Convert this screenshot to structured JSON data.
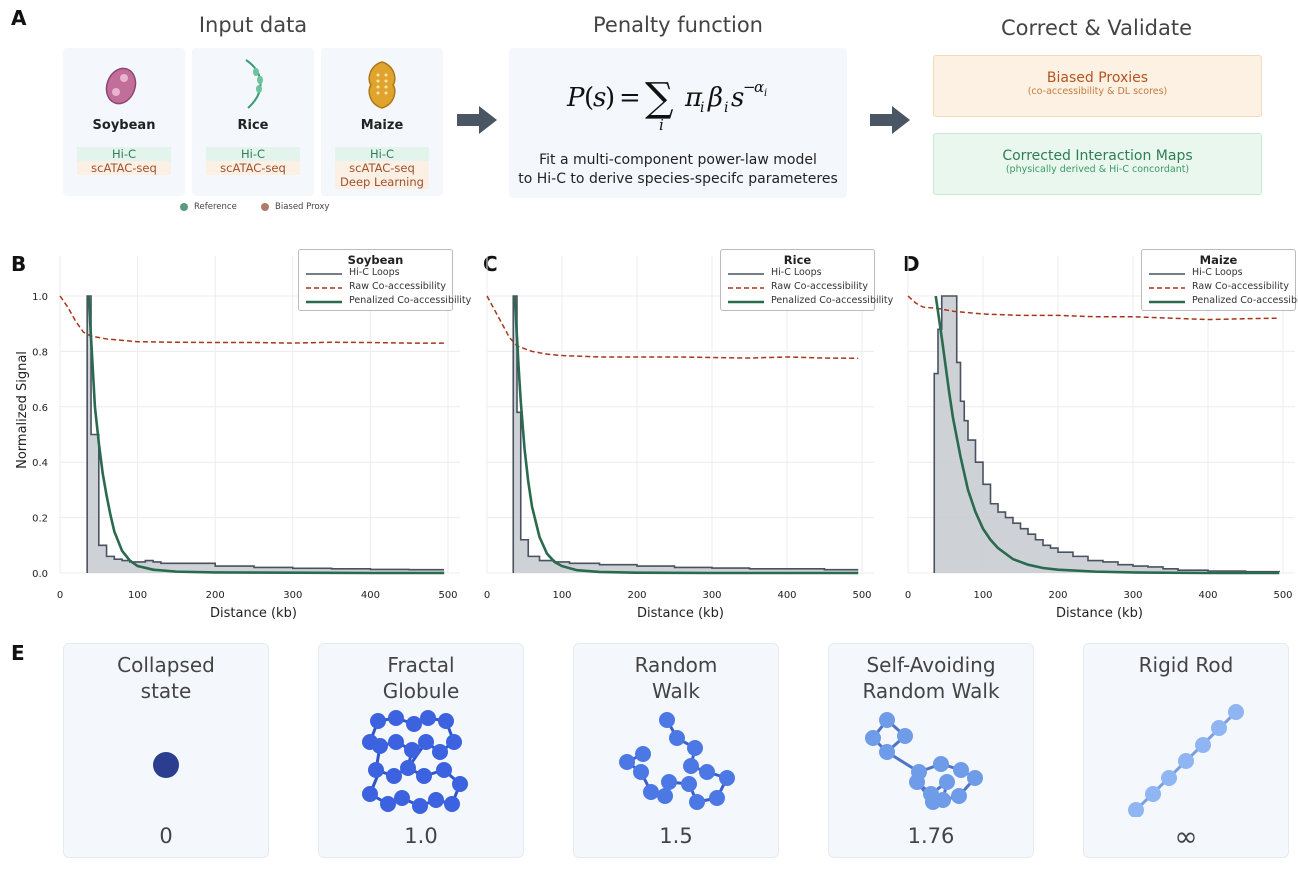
{
  "panels": {
    "A": "A",
    "B": "B",
    "C": "C",
    "D": "D",
    "E": "E"
  },
  "section_a": {
    "input_title": "Input data",
    "penalty_title": "Penalty function",
    "correct_title": "Correct & Validate",
    "species": [
      {
        "name": "Soybean",
        "tags": [
          "Hi-C",
          "scATAC-seq"
        ],
        "icon": "soybean-icon"
      },
      {
        "name": "Rice",
        "tags": [
          "Hi-C",
          "scATAC-seq"
        ],
        "icon": "rice-icon"
      },
      {
        "name": "Maize",
        "tags": [
          "Hi-C",
          "scATAC-seq",
          "Deep Learning"
        ],
        "icon": "maize-icon"
      }
    ],
    "legend": {
      "reference": "Reference",
      "biased": "Biased Proxy"
    },
    "formula_caption_1": "Fit a multi-component power-law model",
    "formula_caption_2": "to Hi-C to derive species-specifc parameteres",
    "biased_box": {
      "title": "Biased Proxies",
      "subtitle": "(co-accessibility & DL scores)"
    },
    "corrected_box": {
      "title": "Corrected Interaction Maps",
      "subtitle": "(physically derived & Hi-C concordant)"
    },
    "colors": {
      "card_bg": "#f4f7fc",
      "ref_green": "#2e7d54",
      "bias_brown": "#a0522d",
      "arrow": "#4a5664"
    }
  },
  "chart_data": [
    {
      "type": "line",
      "title": "Soybean",
      "xlabel": "Distance (kb)",
      "ylabel": "Normalized Signal",
      "xlim": [
        0,
        500
      ],
      "ylim": [
        0,
        1.0
      ],
      "xticks": [
        0,
        100,
        200,
        300,
        400,
        500
      ],
      "yticks": [
        0.0,
        0.2,
        0.4,
        0.6,
        0.8,
        1.0
      ],
      "legend": [
        "Hi-C Loops",
        "Raw Co-accessibility",
        "Penalized Co-accessibility"
      ],
      "legend_position": "top-right",
      "series": [
        {
          "name": "Hi-C Loops",
          "style": "step",
          "x": [
            35,
            40,
            50,
            60,
            70,
            80,
            90,
            100,
            110,
            120,
            130,
            150,
            200,
            250,
            300,
            350,
            400,
            450,
            495
          ],
          "y": [
            1.0,
            0.5,
            0.1,
            0.06,
            0.05,
            0.045,
            0.04,
            0.04,
            0.045,
            0.04,
            0.035,
            0.035,
            0.025,
            0.02,
            0.017,
            0.015,
            0.013,
            0.012,
            0.012
          ]
        },
        {
          "name": "Raw Co-accessibility",
          "style": "dashed",
          "x": [
            0,
            10,
            20,
            30,
            40,
            60,
            80,
            100,
            150,
            200,
            250,
            300,
            350,
            400,
            450,
            495
          ],
          "y": [
            1.0,
            0.96,
            0.91,
            0.87,
            0.855,
            0.845,
            0.84,
            0.835,
            0.833,
            0.832,
            0.832,
            0.83,
            0.833,
            0.832,
            0.83,
            0.83
          ]
        },
        {
          "name": "Penalized Co-accessibility",
          "style": "solid",
          "x": [
            37,
            45,
            50,
            55,
            60,
            65,
            70,
            80,
            90,
            100,
            120,
            150,
            200,
            300,
            400,
            495
          ],
          "y": [
            1.0,
            0.6,
            0.47,
            0.36,
            0.28,
            0.21,
            0.15,
            0.08,
            0.045,
            0.025,
            0.012,
            0.005,
            0.002,
            0.001,
            0.0,
            0.0
          ]
        }
      ]
    },
    {
      "type": "line",
      "title": "Rice",
      "xlabel": "Distance (kb)",
      "ylabel": "",
      "xlim": [
        0,
        500
      ],
      "ylim": [
        0,
        1.0
      ],
      "xticks": [
        0,
        100,
        200,
        300,
        400,
        500
      ],
      "legend": [
        "Hi-C Loops",
        "Raw Co-accessibility",
        "Penalized Co-accessibility"
      ],
      "legend_position": "top-right",
      "series": [
        {
          "name": "Hi-C Loops",
          "style": "step",
          "x": [
            35,
            40,
            45,
            55,
            70,
            90,
            110,
            130,
            150,
            200,
            250,
            300,
            350,
            400,
            450,
            495
          ],
          "y": [
            1.0,
            0.58,
            0.12,
            0.06,
            0.045,
            0.04,
            0.035,
            0.035,
            0.03,
            0.025,
            0.02,
            0.018,
            0.015,
            0.015,
            0.012,
            0.012
          ]
        },
        {
          "name": "Raw Co-accessibility",
          "style": "dashed",
          "x": [
            0,
            10,
            20,
            30,
            40,
            60,
            80,
            100,
            150,
            200,
            250,
            300,
            350,
            400,
            450,
            495
          ],
          "y": [
            1.0,
            0.95,
            0.9,
            0.85,
            0.82,
            0.8,
            0.79,
            0.785,
            0.78,
            0.78,
            0.78,
            0.778,
            0.776,
            0.78,
            0.776,
            0.775
          ]
        },
        {
          "name": "Penalized Co-accessibility",
          "style": "solid",
          "x": [
            37,
            42,
            45,
            50,
            55,
            60,
            70,
            80,
            90,
            100,
            120,
            150,
            200,
            300,
            400,
            495
          ],
          "y": [
            1.0,
            0.75,
            0.62,
            0.45,
            0.33,
            0.24,
            0.13,
            0.07,
            0.04,
            0.025,
            0.01,
            0.004,
            0.001,
            0.0,
            0.0,
            0.0
          ]
        }
      ]
    },
    {
      "type": "line",
      "title": "Maize",
      "xlabel": "Distance (kb)",
      "ylabel": "",
      "xlim": [
        0,
        500
      ],
      "ylim": [
        0,
        1.0
      ],
      "xticks": [
        0,
        100,
        200,
        300,
        400,
        500
      ],
      "legend": [
        "Hi-C Loops",
        "Raw Co-accessibility",
        "Penalized Co-accessibility"
      ],
      "legend_position": "top-right",
      "series": [
        {
          "name": "Hi-C Loops",
          "style": "step",
          "x": [
            35,
            40,
            45,
            55,
            65,
            70,
            75,
            80,
            90,
            100,
            110,
            120,
            130,
            140,
            150,
            160,
            170,
            180,
            190,
            200,
            220,
            240,
            260,
            280,
            300,
            320,
            340,
            360,
            400,
            450,
            495
          ],
          "y": [
            0.72,
            0.88,
            1.0,
            1.0,
            0.76,
            0.62,
            0.55,
            0.48,
            0.4,
            0.32,
            0.25,
            0.22,
            0.2,
            0.18,
            0.16,
            0.14,
            0.12,
            0.1,
            0.09,
            0.075,
            0.06,
            0.045,
            0.04,
            0.03,
            0.025,
            0.022,
            0.015,
            0.01,
            0.007,
            0.005,
            0.004
          ]
        },
        {
          "name": "Raw Co-accessibility",
          "style": "dashed",
          "x": [
            0,
            10,
            20,
            40,
            60,
            80,
            100,
            150,
            200,
            250,
            300,
            350,
            400,
            450,
            495
          ],
          "y": [
            1.0,
            0.975,
            0.96,
            0.955,
            0.945,
            0.94,
            0.935,
            0.93,
            0.93,
            0.925,
            0.925,
            0.92,
            0.915,
            0.918,
            0.92
          ]
        },
        {
          "name": "Penalized Co-accessibility",
          "style": "solid",
          "x": [
            37,
            45,
            50,
            55,
            60,
            70,
            80,
            90,
            100,
            110,
            120,
            140,
            160,
            180,
            200,
            250,
            300,
            400,
            495
          ],
          "y": [
            1.0,
            0.85,
            0.75,
            0.65,
            0.56,
            0.42,
            0.3,
            0.22,
            0.16,
            0.12,
            0.09,
            0.05,
            0.03,
            0.018,
            0.012,
            0.005,
            0.002,
            0.0,
            0.0
          ]
        }
      ]
    }
  ],
  "section_e": {
    "models": [
      {
        "title": "Collapsed\nstate",
        "value": "0",
        "icon": "collapsed-state-icon"
      },
      {
        "title": "Fractal\nGlobule",
        "value": "1.0",
        "icon": "fractal-globule-icon"
      },
      {
        "title": "Random\nWalk",
        "value": "1.5",
        "icon": "random-walk-icon"
      },
      {
        "title": "Self-Avoiding\nRandom Walk",
        "value": "1.76",
        "icon": "self-avoiding-walk-icon"
      },
      {
        "title": "Rigid Rod",
        "value": "∞",
        "icon": "rigid-rod-icon"
      }
    ],
    "colors": {
      "collapsed": "#2a3d8f",
      "fractal": "#3c62e0",
      "random": "#4c78e6",
      "saw": "#6f9ce8",
      "rod": "#8fb5f3"
    }
  }
}
